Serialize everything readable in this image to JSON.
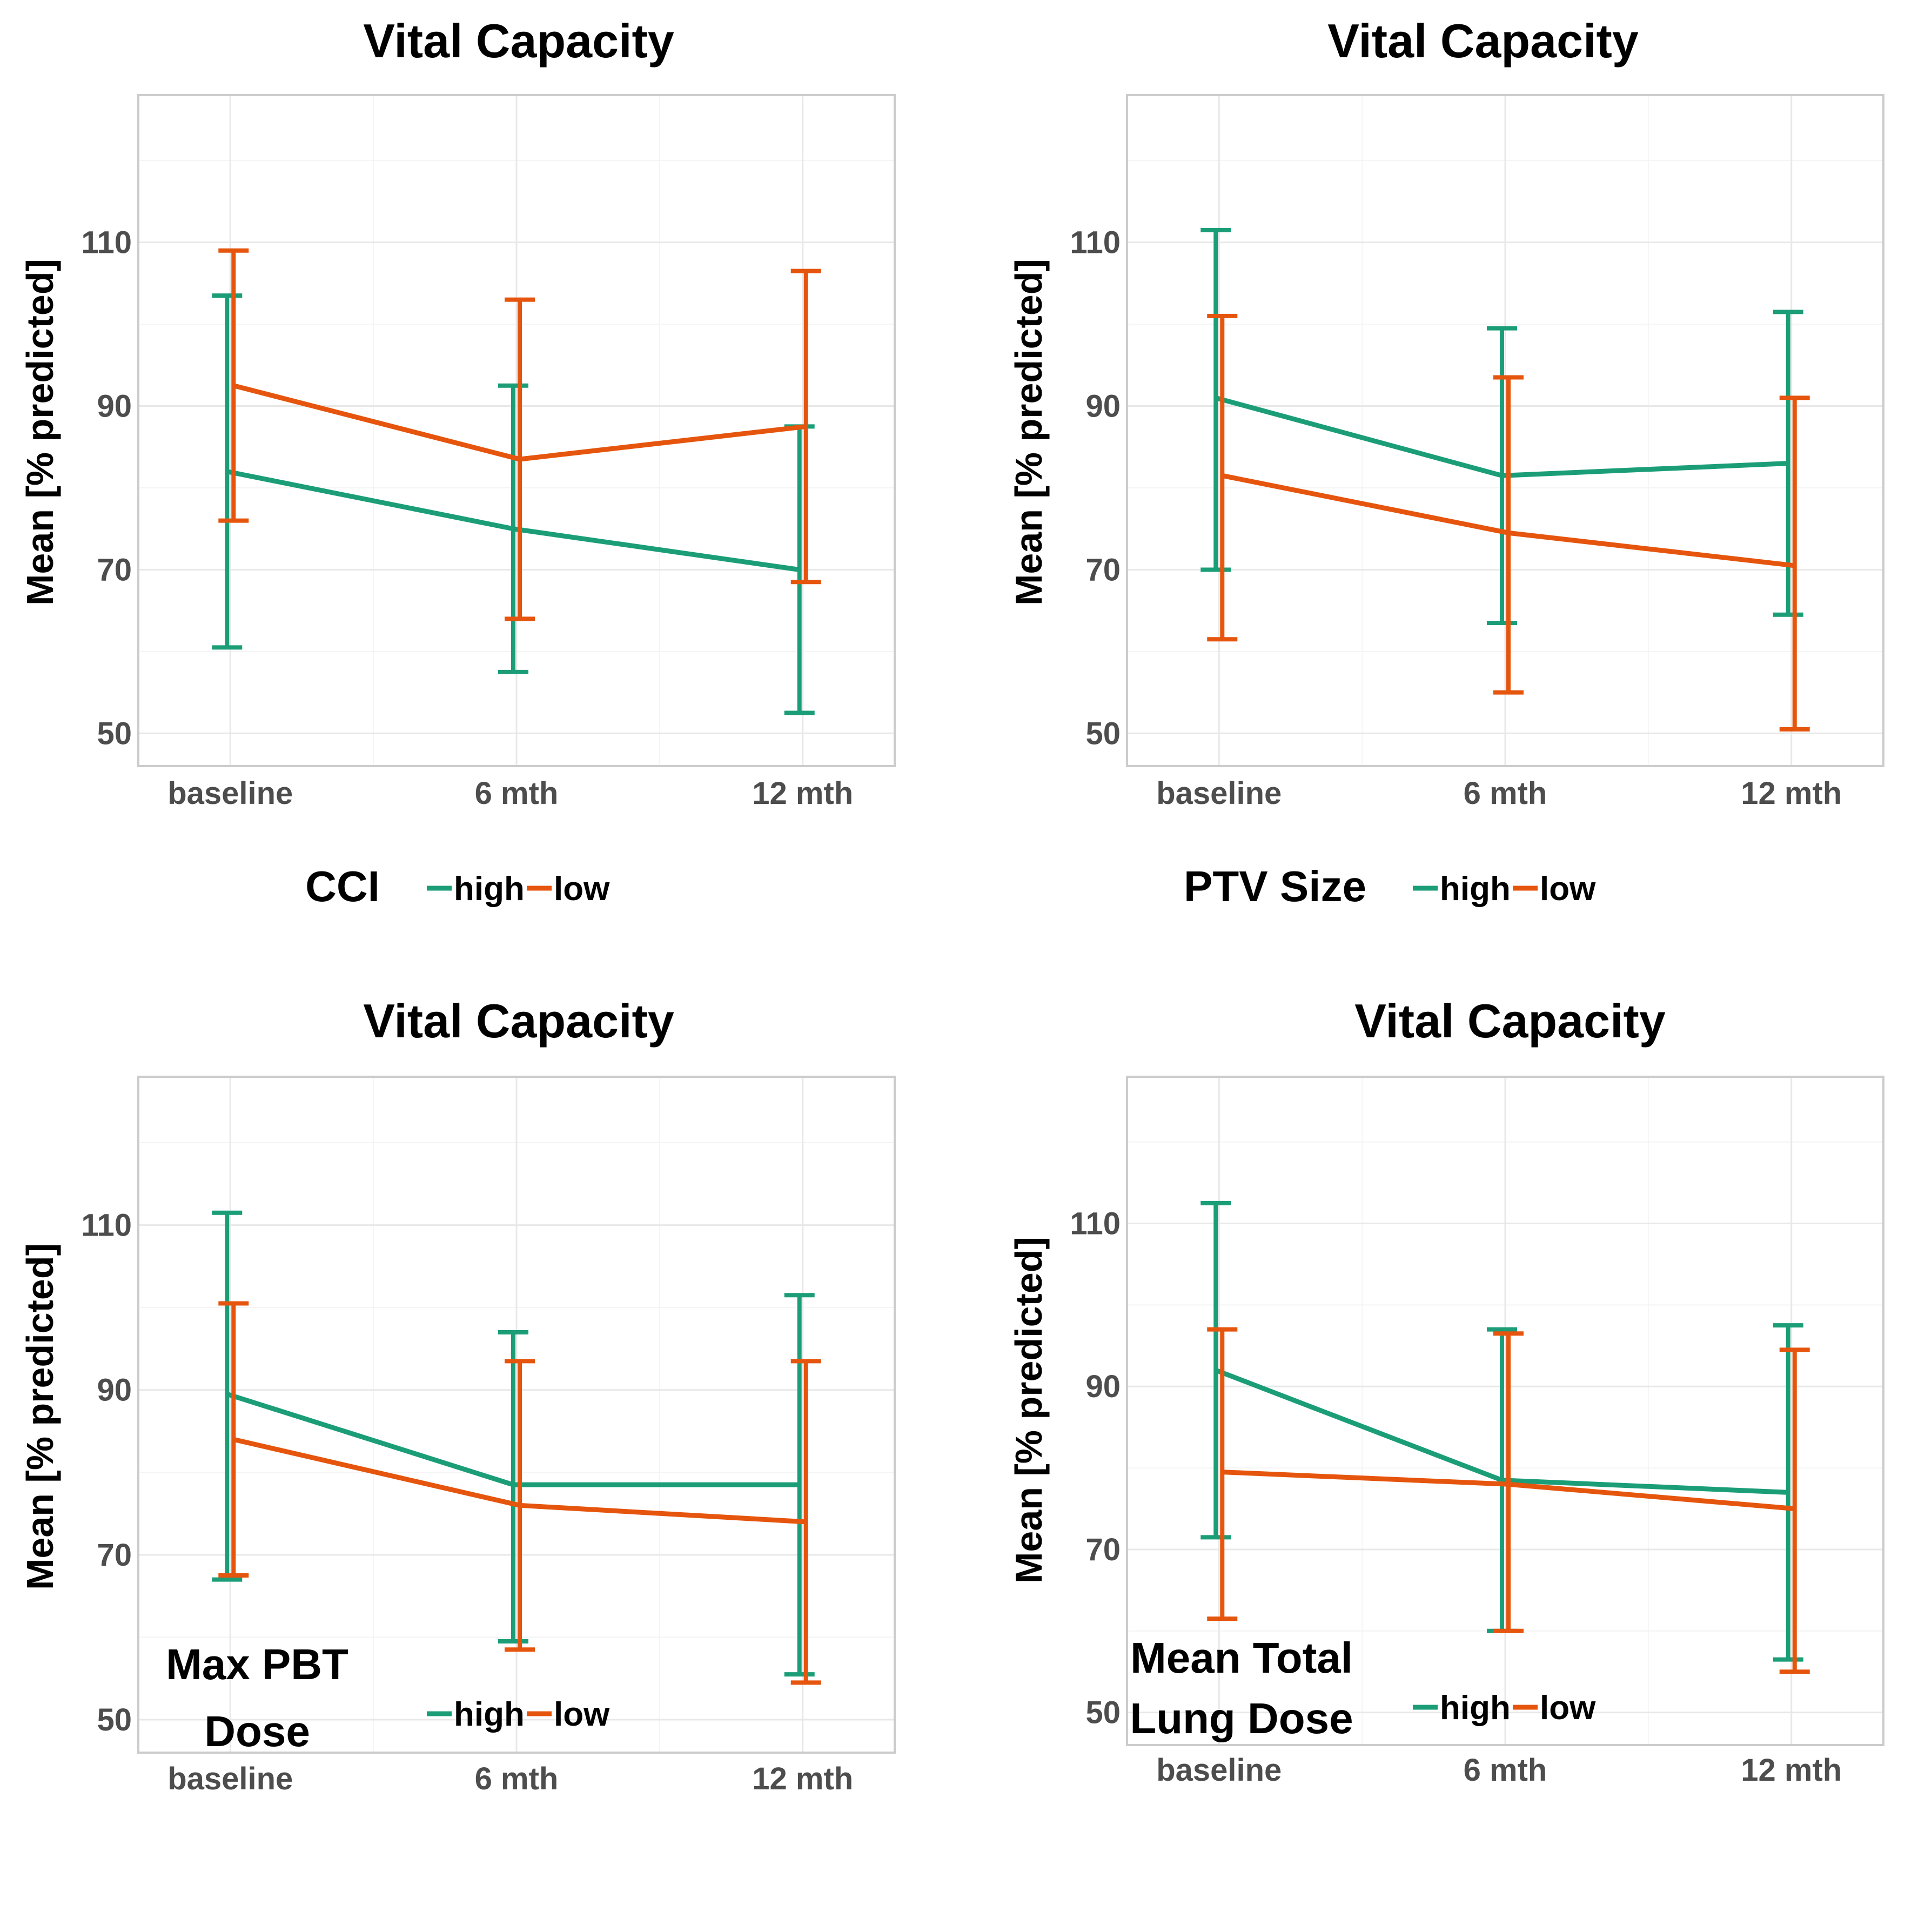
{
  "chart_data": [
    {
      "type": "line",
      "title": "Vital Capacity",
      "ylabel": "Mean [% predicted]",
      "xlabel": "",
      "categories": [
        "baseline",
        "6 mth",
        "12 mth"
      ],
      "yticks": [
        "50",
        "70",
        "90",
        "110"
      ],
      "ylim": [
        46,
        128
      ],
      "grid": true,
      "legend_title": [
        "CCI"
      ],
      "legend_labels": [
        "high",
        "low"
      ],
      "series": [
        {
          "name": "high",
          "color": "#1b9e77",
          "values": [
            82,
            75,
            70
          ],
          "err_low": [
            60.5,
            57.5,
            52.5
          ],
          "err_high": [
            103.5,
            92.5,
            87.5
          ]
        },
        {
          "name": "low",
          "color": "#e6550d",
          "values": [
            92.5,
            83.5,
            87.5
          ],
          "err_low": [
            76,
            64,
            68.5
          ],
          "err_high": [
            109,
            103,
            106.5
          ]
        }
      ]
    },
    {
      "type": "line",
      "title": "Vital Capacity",
      "ylabel": "Mean [% predicted]",
      "xlabel": "",
      "categories": [
        "baseline",
        "6 mth",
        "12 mth"
      ],
      "yticks": [
        "50",
        "70",
        "90",
        "110"
      ],
      "ylim": [
        46,
        128
      ],
      "grid": true,
      "legend_title": [
        "PTV Size"
      ],
      "legend_labels": [
        "high",
        "low"
      ],
      "series": [
        {
          "name": "high",
          "color": "#1b9e77",
          "values": [
            91,
            81.5,
            83
          ],
          "err_low": [
            70,
            63.5,
            64.5
          ],
          "err_high": [
            111.5,
            99.5,
            101.5
          ]
        },
        {
          "name": "low",
          "color": "#e6550d",
          "values": [
            81.5,
            74.5,
            70.5
          ],
          "err_low": [
            61.5,
            55,
            50.5
          ],
          "err_high": [
            101,
            93.5,
            91
          ]
        }
      ]
    },
    {
      "type": "line",
      "title": "Vital Capacity",
      "ylabel": "Mean [% predicted]",
      "xlabel": "",
      "categories": [
        "baseline",
        "6 mth",
        "12 mth"
      ],
      "yticks": [
        "50",
        "70",
        "90",
        "110"
      ],
      "ylim": [
        46,
        128
      ],
      "grid": true,
      "legend_title": [
        "Max PBT",
        "Dose"
      ],
      "legend_labels": [
        "high",
        "low"
      ],
      "series": [
        {
          "name": "high",
          "color": "#1b9e77",
          "values": [
            89.5,
            78.5,
            78.5
          ],
          "err_low": [
            67,
            59.5,
            55.5
          ],
          "err_high": [
            111.5,
            97,
            101.5
          ]
        },
        {
          "name": "low",
          "color": "#e6550d",
          "values": [
            84,
            76,
            74
          ],
          "err_low": [
            67.5,
            58.5,
            54.5
          ],
          "err_high": [
            100.5,
            93.5,
            93.5
          ]
        }
      ]
    },
    {
      "type": "line",
      "title": "Vital Capacity",
      "ylabel": "Mean [% predicted]",
      "xlabel": "",
      "categories": [
        "baseline",
        "6 mth",
        "12 mth"
      ],
      "yticks": [
        "50",
        "70",
        "90",
        "110"
      ],
      "ylim": [
        46,
        128
      ],
      "grid": true,
      "legend_title": [
        "Mean Total",
        "Lung Dose"
      ],
      "legend_labels": [
        "high",
        "low"
      ],
      "series": [
        {
          "name": "high",
          "color": "#1b9e77",
          "values": [
            92,
            78.5,
            77
          ],
          "err_low": [
            71.5,
            60,
            56.5
          ],
          "err_high": [
            112.5,
            97,
            97.5
          ]
        },
        {
          "name": "low",
          "color": "#e6550d",
          "values": [
            79.5,
            78,
            75
          ],
          "err_low": [
            61.5,
            60,
            55
          ],
          "err_high": [
            97,
            96.5,
            94.5
          ]
        }
      ]
    }
  ]
}
